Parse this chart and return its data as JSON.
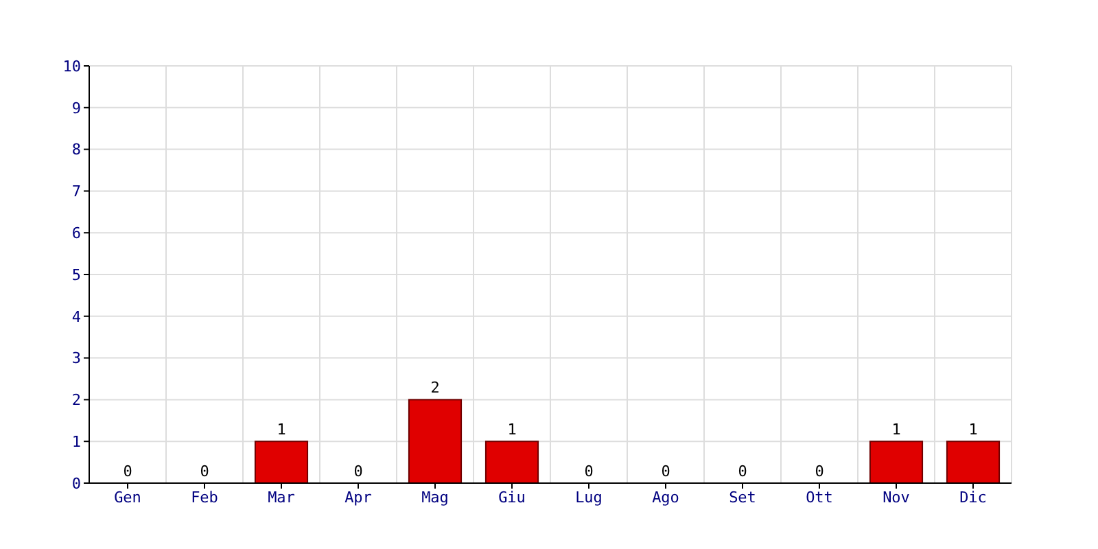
{
  "chart_data": {
    "type": "bar",
    "categories": [
      "Gen",
      "Feb",
      "Mar",
      "Apr",
      "Mag",
      "Giu",
      "Lug",
      "Ago",
      "Set",
      "Ott",
      "Nov",
      "Dic"
    ],
    "values": [
      0,
      0,
      1,
      0,
      2,
      1,
      0,
      0,
      0,
      0,
      1,
      1
    ],
    "color": "#e00000",
    "ylim": [
      0,
      10
    ],
    "yticks": [
      0,
      1,
      2,
      3,
      4,
      5,
      6,
      7,
      8,
      9,
      10
    ],
    "grid": true,
    "data_labels": true
  }
}
